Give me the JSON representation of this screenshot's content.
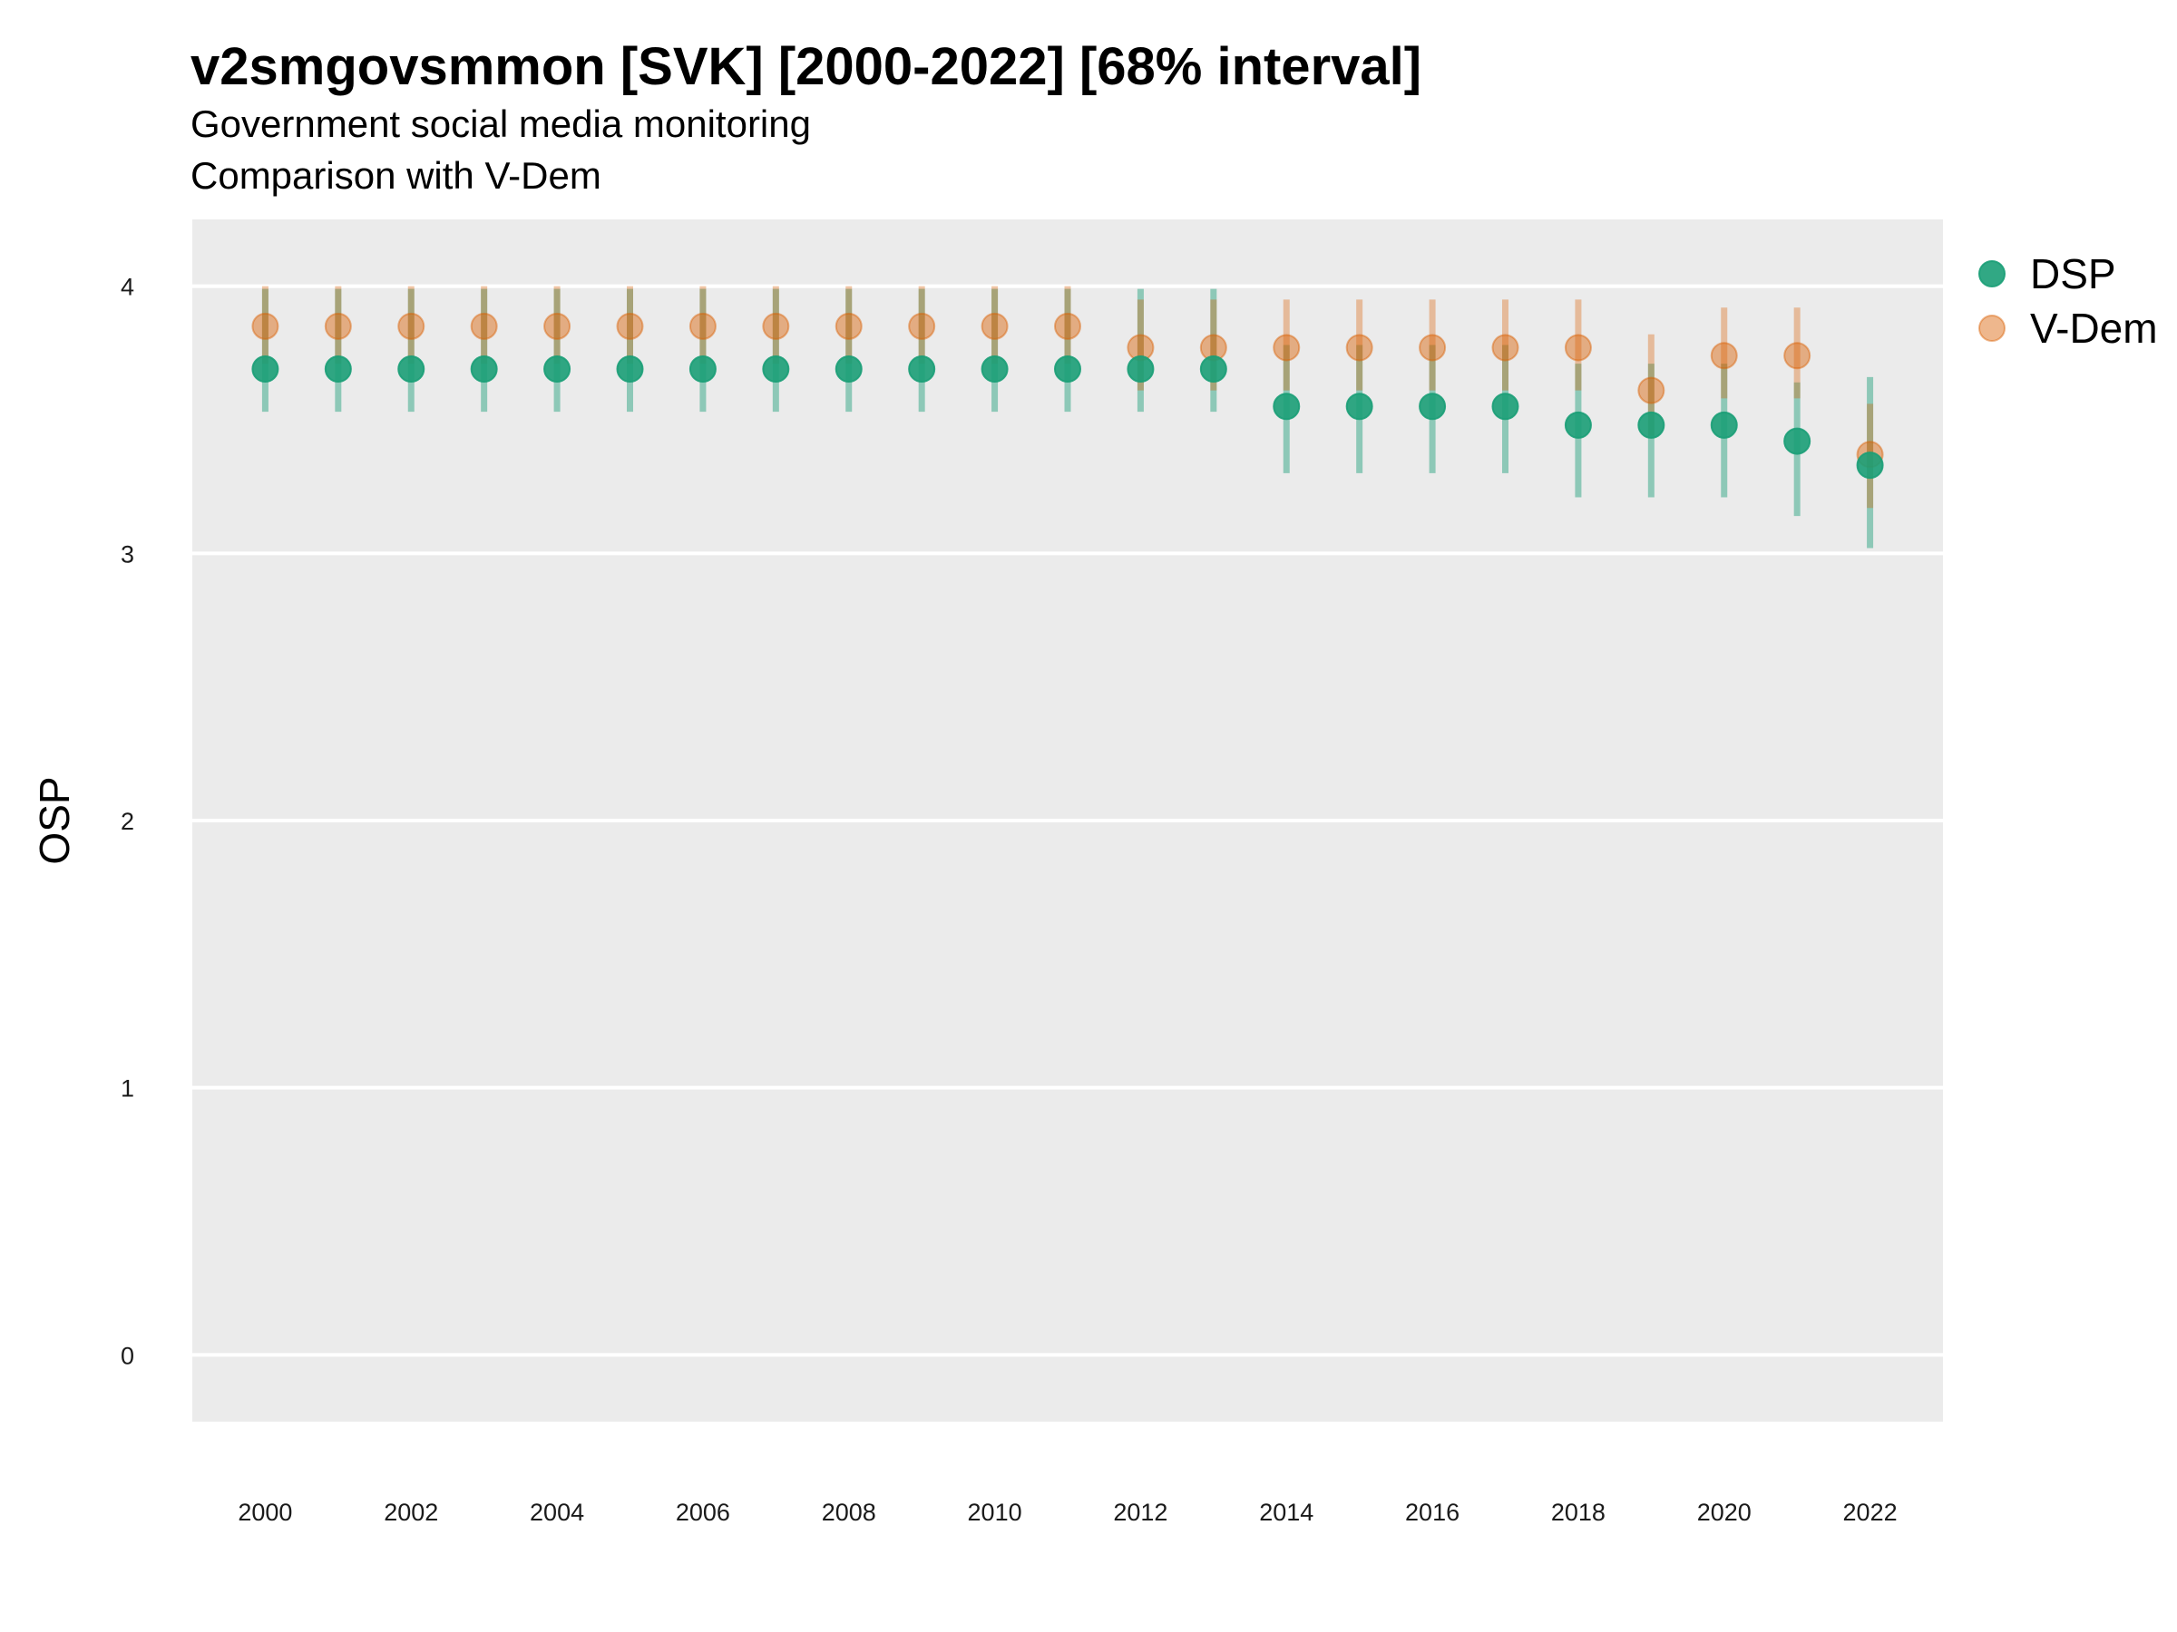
{
  "title": "v2smgovsmmon [SVK] [2000-2022] [68% interval]",
  "subtitle": "Government social media monitoring",
  "caption": "Comparison with V-Dem",
  "colors": {
    "dsp": "#1b9e77",
    "vdem": "#d95f02",
    "panel": "#ebebeb",
    "grid": "#ffffff"
  },
  "chart_data": {
    "type": "scatter",
    "ylabel": "OSP",
    "xlabel": "",
    "ylim": [
      -0.25,
      4.25
    ],
    "yticks": [
      0,
      1,
      2,
      3,
      4
    ],
    "xlim": [
      1999,
      2023
    ],
    "xticks": [
      2000,
      2002,
      2004,
      2006,
      2008,
      2010,
      2012,
      2014,
      2016,
      2018,
      2020,
      2022
    ],
    "grid": true,
    "legend_position": "right",
    "x": [
      2000,
      2001,
      2002,
      2003,
      2004,
      2005,
      2006,
      2007,
      2008,
      2009,
      2010,
      2011,
      2012,
      2013,
      2014,
      2015,
      2016,
      2017,
      2018,
      2019,
      2020,
      2021,
      2022
    ],
    "series": [
      {
        "name": "DSP",
        "values": [
          3.69,
          3.69,
          3.69,
          3.69,
          3.69,
          3.69,
          3.69,
          3.69,
          3.69,
          3.69,
          3.69,
          3.69,
          3.69,
          3.69,
          3.55,
          3.55,
          3.55,
          3.55,
          3.48,
          3.48,
          3.48,
          3.42,
          3.33
        ],
        "lower": [
          3.53,
          3.53,
          3.53,
          3.53,
          3.53,
          3.53,
          3.53,
          3.53,
          3.53,
          3.53,
          3.53,
          3.53,
          3.53,
          3.53,
          3.3,
          3.3,
          3.3,
          3.3,
          3.21,
          3.21,
          3.21,
          3.14,
          3.02
        ],
        "upper": [
          3.99,
          3.99,
          3.99,
          3.99,
          3.99,
          3.99,
          3.99,
          3.99,
          3.99,
          3.99,
          3.99,
          3.99,
          3.99,
          3.99,
          3.78,
          3.78,
          3.78,
          3.78,
          3.71,
          3.71,
          3.71,
          3.64,
          3.66
        ]
      },
      {
        "name": "V-Dem",
        "values": [
          3.85,
          3.85,
          3.85,
          3.85,
          3.85,
          3.85,
          3.85,
          3.85,
          3.85,
          3.85,
          3.85,
          3.85,
          3.77,
          3.77,
          3.77,
          3.77,
          3.77,
          3.77,
          3.77,
          3.61,
          3.74,
          3.74,
          3.37
        ],
        "lower": [
          3.71,
          3.71,
          3.71,
          3.71,
          3.71,
          3.71,
          3.71,
          3.71,
          3.71,
          3.71,
          3.71,
          3.71,
          3.61,
          3.61,
          3.61,
          3.61,
          3.61,
          3.61,
          3.61,
          3.44,
          3.58,
          3.58,
          3.17
        ],
        "upper": [
          4.0,
          4.0,
          4.0,
          4.0,
          4.0,
          4.0,
          4.0,
          4.0,
          4.0,
          4.0,
          4.0,
          4.0,
          3.95,
          3.95,
          3.95,
          3.95,
          3.95,
          3.95,
          3.95,
          3.82,
          3.92,
          3.92,
          3.56
        ]
      }
    ]
  }
}
